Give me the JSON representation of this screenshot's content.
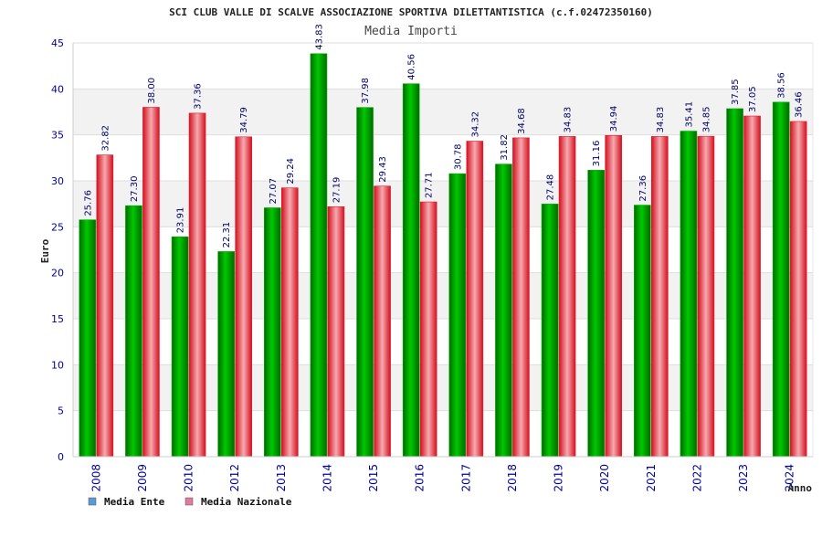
{
  "colors": {
    "ente": "#00b000",
    "nazionale": "#e8192c",
    "legend_ente": "#5b9bd5",
    "legend_nazionale": "#e07aa0"
  },
  "chart_data": {
    "type": "bar",
    "title": "SCI CLUB VALLE DI SCALVE ASSOCIAZIONE SPORTIVA DILETTANTISTICA (c.f.02472350160)",
    "subtitle": "Media Importi",
    "xlabel": "Anno",
    "ylabel": "Euro",
    "ylim": [
      0,
      45
    ],
    "yticks": [
      0,
      5,
      10,
      15,
      20,
      25,
      30,
      35,
      40,
      45
    ],
    "grid": true,
    "legend_position": "bottom-left",
    "categories": [
      "2008",
      "2009",
      "2010",
      "2012",
      "2013",
      "2014",
      "2015",
      "2016",
      "2017",
      "2018",
      "2019",
      "2020",
      "2021",
      "2022",
      "2023",
      "2024"
    ],
    "series": [
      {
        "name": "Media Ente",
        "values": [
          25.76,
          27.3,
          23.91,
          22.31,
          27.07,
          43.83,
          37.98,
          40.56,
          30.78,
          31.82,
          27.48,
          31.16,
          27.36,
          35.41,
          37.85,
          38.56
        ],
        "labels": [
          "25.76",
          "27.30",
          "23.91",
          "22.31",
          "27.07",
          "43.83",
          "37.98",
          "40.56",
          "30.78",
          "31.82",
          "27.48",
          "31.16",
          "27.36",
          "35.41",
          "37.85",
          "38.56"
        ]
      },
      {
        "name": "Media Nazionale",
        "values": [
          32.82,
          38.0,
          37.36,
          34.79,
          29.24,
          27.19,
          29.43,
          27.71,
          34.32,
          34.68,
          34.83,
          34.94,
          34.83,
          34.85,
          37.05,
          36.46
        ],
        "labels": [
          "32.82",
          "38.00",
          "37.36",
          "34.79",
          "29.24",
          "27.19",
          "29.43",
          "27.71",
          "34.32",
          "34.68",
          "34.83",
          "34.94",
          "34.83",
          "34.85",
          "37.05",
          "36.46"
        ]
      }
    ]
  }
}
